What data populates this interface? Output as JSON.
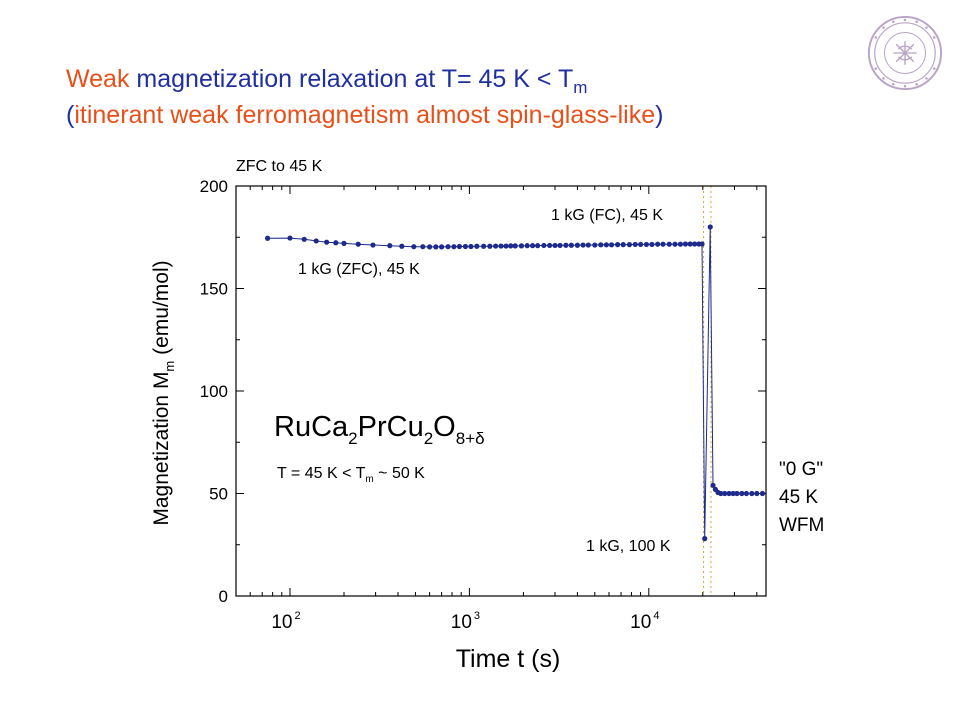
{
  "slide": {
    "title_line1": {
      "word_orange": "Weak",
      "rest": "magnetization relaxation at T= 45 K < T",
      "sub": "m"
    },
    "title_line2": {
      "open_paren": "(",
      "orange": "itinerant weak ferromagnetism almost spin-glass-like",
      "close_paren": ")"
    },
    "colors": {
      "orange": "#e8501a",
      "blue": "#1f2f9e",
      "data": "#1e2a8c",
      "seal": "#b9a3c6"
    },
    "seal_icon": "university-seal-icon"
  },
  "chart_data": {
    "type": "scatter",
    "x_scale": "log",
    "xlabel": "Time  t (s)",
    "ylabel": "Magnetization  M",
    "ylabel_sub": "m",
    "ylabel_suffix": " (emu/mol)",
    "xlim": [
      50,
      45000
    ],
    "ylim": [
      0,
      200
    ],
    "y_ticks": [
      "0",
      "50",
      "100",
      "150",
      "200"
    ],
    "x_ticks": [
      {
        "value": 100,
        "base": "10",
        "exp": "2"
      },
      {
        "value": 1000,
        "base": "10",
        "exp": "3"
      },
      {
        "value": 10000,
        "base": "10",
        "exp": "4"
      }
    ],
    "x_minor_ticks": [
      60,
      70,
      80,
      90,
      200,
      300,
      400,
      500,
      600,
      700,
      800,
      900,
      2000,
      3000,
      4000,
      5000,
      6000,
      7000,
      8000,
      9000,
      20000,
      30000,
      40000
    ],
    "y_minor_ticks": [
      25,
      75,
      125,
      175
    ],
    "series": [
      {
        "points": [
          [
            75,
            174.5
          ],
          [
            100,
            174.6
          ],
          [
            120,
            174
          ],
          [
            140,
            173.2
          ],
          [
            160,
            172.6
          ],
          [
            180,
            172.3
          ],
          [
            200,
            172
          ],
          [
            240,
            171.6
          ],
          [
            290,
            171.2
          ],
          [
            360,
            170.9
          ],
          [
            420,
            170.6
          ],
          [
            490,
            170.4
          ],
          [
            550,
            170.4
          ],
          [
            600,
            170.3
          ],
          [
            650,
            170.3
          ],
          [
            700,
            170.3
          ],
          [
            760,
            170.4
          ],
          [
            820,
            170.4
          ],
          [
            880,
            170.5
          ],
          [
            950,
            170.5
          ],
          [
            1020,
            170.5
          ],
          [
            1100,
            170.6
          ],
          [
            1200,
            170.6
          ],
          [
            1300,
            170.6
          ],
          [
            1400,
            170.7
          ],
          [
            1500,
            170.7
          ],
          [
            1600,
            170.7
          ],
          [
            1700,
            170.8
          ],
          [
            1800,
            170.8
          ],
          [
            1950,
            170.8
          ],
          [
            2100,
            170.9
          ],
          [
            2250,
            170.9
          ],
          [
            2400,
            170.9
          ],
          [
            2600,
            171
          ],
          [
            2800,
            171
          ],
          [
            3000,
            171
          ],
          [
            3200,
            171
          ],
          [
            3450,
            171.1
          ],
          [
            3700,
            171.1
          ],
          [
            4000,
            171.1
          ],
          [
            4300,
            171.2
          ],
          [
            4600,
            171.2
          ],
          [
            5000,
            171.2
          ],
          [
            5400,
            171.3
          ],
          [
            5800,
            171.3
          ],
          [
            6200,
            171.3
          ],
          [
            6700,
            171.4
          ],
          [
            7200,
            171.4
          ],
          [
            7800,
            171.4
          ],
          [
            8400,
            171.5
          ],
          [
            9000,
            171.5
          ],
          [
            9700,
            171.5
          ],
          [
            10400,
            171.5
          ],
          [
            11200,
            171.6
          ],
          [
            12000,
            171.6
          ],
          [
            13000,
            171.6
          ],
          [
            14000,
            171.6
          ],
          [
            15000,
            171.6
          ],
          [
            16000,
            171.7
          ],
          [
            17000,
            171.7
          ],
          [
            18000,
            171.7
          ],
          [
            19000,
            171.7
          ],
          [
            19800,
            171.7
          ],
          [
            20500,
            28
          ],
          [
            22000,
            180
          ],
          [
            22800,
            54
          ],
          [
            23500,
            52
          ],
          [
            24300,
            50.5
          ],
          [
            25200,
            50
          ],
          [
            26500,
            50
          ],
          [
            28000,
            50
          ],
          [
            29500,
            50
          ],
          [
            31000,
            50
          ],
          [
            33000,
            50
          ],
          [
            35000,
            50
          ],
          [
            37500,
            50
          ],
          [
            40000,
            50
          ],
          [
            43000,
            50
          ]
        ]
      }
    ],
    "vertical_dotted_lines_x": [
      20200,
      22200
    ],
    "annotations": [
      {
        "id": "zfc",
        "text": "ZFC to 45 K"
      },
      {
        "id": "fc",
        "text": "1 kG (FC), 45 K"
      },
      {
        "id": "zfc1",
        "text": "1 kG (ZFC), 45 K"
      },
      {
        "id": "100k",
        "text": "1 kG, 100 K"
      },
      {
        "id": "og1",
        "text": "\"0 G\""
      },
      {
        "id": "og2",
        "text": "45 K"
      },
      {
        "id": "og3",
        "text": "WFM"
      }
    ],
    "formula": {
      "p1": "RuCa",
      "s1": "2",
      "p2": "PrCu",
      "s2": "2",
      "p3": "O",
      "s3": "8+δ"
    },
    "condition": {
      "p1": "T = 45 K < T",
      "sub": "m",
      "p2": " ~ 50 K"
    }
  }
}
